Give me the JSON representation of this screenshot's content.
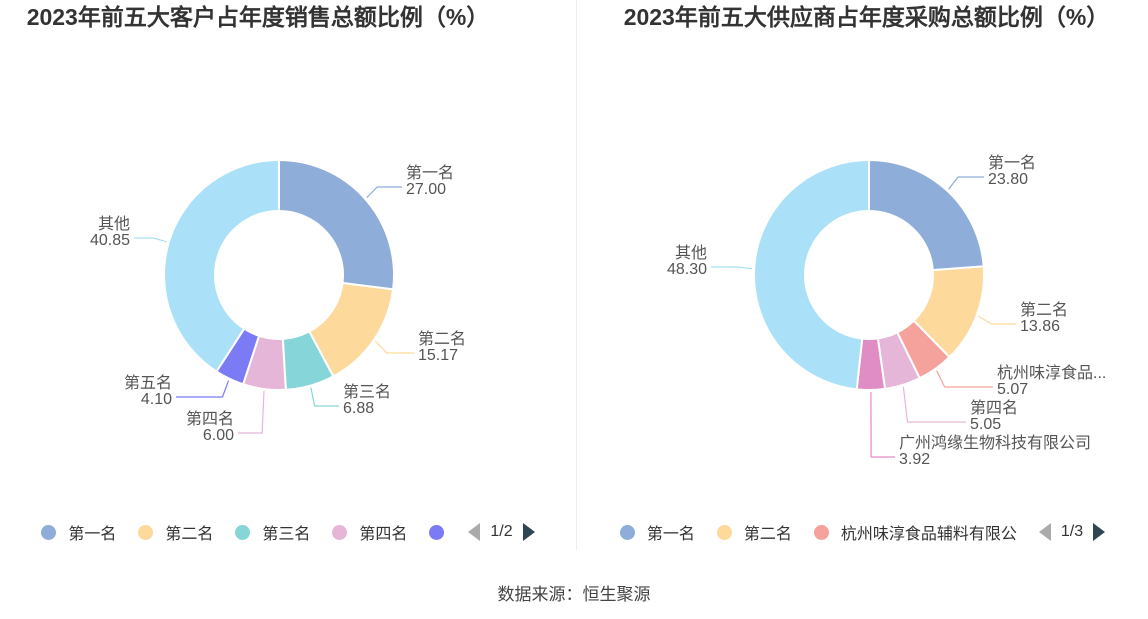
{
  "source_label": "数据来源：恒生聚源",
  "chart_data": [
    {
      "type": "pie",
      "title": "2023年前五大客户占年度销售总额比例（%）",
      "categories": [
        "第一名",
        "第二名",
        "第三名",
        "第四名",
        "第五名",
        "其他"
      ],
      "values": [
        27.0,
        15.17,
        6.88,
        6.0,
        4.1,
        40.85
      ],
      "value_labels": [
        "27.00",
        "15.17",
        "6.88",
        "6.00",
        "4.10",
        "40.85"
      ],
      "colors": [
        "#8eadd9",
        "#fdd99b",
        "#86d5d9",
        "#e6b6d8",
        "#7b7cf5",
        "#aae1f8"
      ],
      "legend_visible": [
        "第一名",
        "第二名",
        "第三名",
        "第四名",
        ""
      ],
      "legend_page": "1/2",
      "legend_position": "bottom"
    },
    {
      "type": "pie",
      "title": "2023年前五大供应商占年度采购总额比例（%）",
      "categories": [
        "第一名",
        "第二名",
        "杭州味淳食品...",
        "第四名",
        "广州鸿缘生物科技有限公司",
        "其他"
      ],
      "values": [
        23.8,
        13.86,
        5.07,
        5.05,
        3.92,
        48.3
      ],
      "value_labels": [
        "23.80",
        "13.86",
        "5.07",
        "5.05",
        "3.92",
        "48.30"
      ],
      "colors": [
        "#8eadd9",
        "#fdd99b",
        "#f5a29c",
        "#e6b6d8",
        "#e08cc5",
        "#aae1f8"
      ],
      "legend_visible": [
        "第一名",
        "第二名",
        "杭州味淳食品辅料有限公"
      ],
      "legend_page": "1/3",
      "legend_position": "bottom"
    }
  ]
}
